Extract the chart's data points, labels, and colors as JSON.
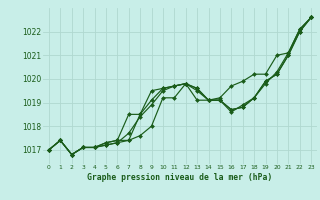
{
  "xlabel": "Graphe pression niveau de la mer (hPa)",
  "ylabel": "",
  "bg_color": "#c8eee8",
  "grid_color": "#b0d8d0",
  "line_color": "#1a5c1a",
  "marker_color": "#1a5c1a",
  "xlim": [
    -0.5,
    23.5
  ],
  "ylim": [
    1016.4,
    1023.0
  ],
  "yticks": [
    1017,
    1018,
    1019,
    1020,
    1021,
    1022
  ],
  "xticks": [
    0,
    1,
    2,
    3,
    4,
    5,
    6,
    7,
    8,
    9,
    10,
    11,
    12,
    13,
    14,
    15,
    16,
    17,
    18,
    19,
    20,
    21,
    22,
    23
  ],
  "series": [
    [
      1017.0,
      1017.4,
      1016.8,
      1017.1,
      1017.1,
      1017.2,
      1017.3,
      1017.4,
      1018.5,
      1019.1,
      1019.6,
      1019.7,
      1019.8,
      1019.6,
      1019.1,
      1019.1,
      1018.7,
      1018.8,
      1019.2,
      1019.9,
      1020.2,
      1021.0,
      1022.0,
      1022.6
    ],
    [
      1017.0,
      1017.4,
      1016.8,
      1017.1,
      1017.1,
      1017.2,
      1017.3,
      1017.7,
      1018.4,
      1018.9,
      1019.5,
      1019.7,
      1019.8,
      1019.5,
      1019.1,
      1019.1,
      1018.7,
      1018.8,
      1019.2,
      1019.9,
      1020.2,
      1021.0,
      1022.0,
      1022.6
    ],
    [
      1017.0,
      1017.4,
      1016.8,
      1017.1,
      1017.1,
      1017.3,
      1017.4,
      1018.5,
      1018.5,
      1019.5,
      1019.6,
      1019.7,
      1019.8,
      1019.6,
      1019.1,
      1019.1,
      1018.6,
      1018.9,
      1019.2,
      1019.8,
      1020.3,
      1021.1,
      1022.1,
      1022.6
    ],
    [
      1017.0,
      1017.4,
      1016.8,
      1017.1,
      1017.1,
      1017.3,
      1017.4,
      1017.4,
      1017.6,
      1018.0,
      1019.2,
      1019.2,
      1019.8,
      1019.1,
      1019.1,
      1019.2,
      1019.7,
      1019.9,
      1020.2,
      1020.2,
      1021.0,
      1021.1,
      1022.1,
      1022.6
    ]
  ],
  "xlabel_fontsize": 5.8,
  "ytick_fontsize": 5.5,
  "xtick_fontsize": 4.3
}
